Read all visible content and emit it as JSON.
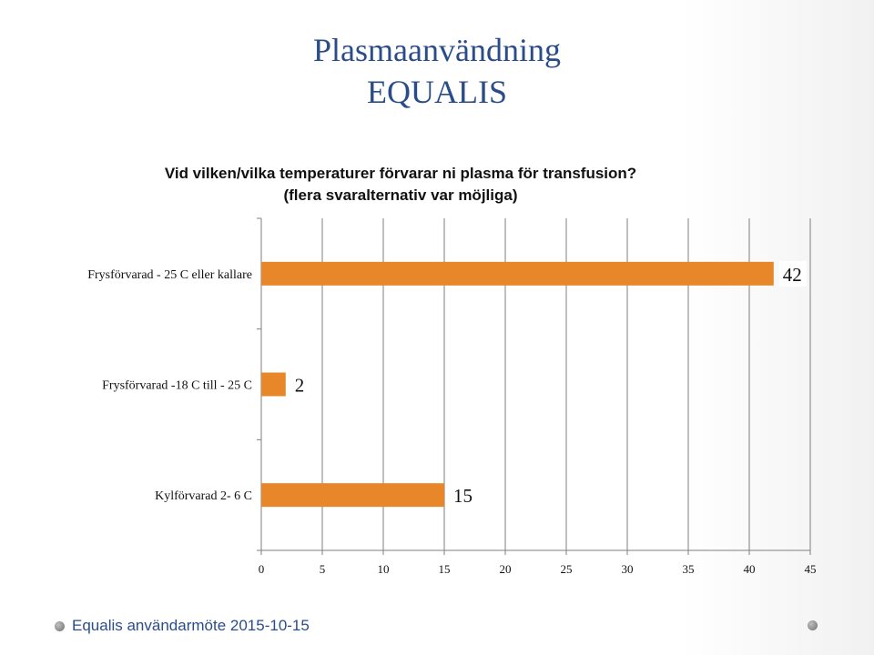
{
  "slide": {
    "title_line1": "Plasmaanvändning",
    "title_line2": "EQUALIS",
    "footer_text": "Equalis användarmöte 2015-10-15"
  },
  "chart_data": {
    "type": "bar",
    "orientation": "horizontal",
    "title": "Vid vilken/vilka temperaturer förvarar ni plasma för transfusion?",
    "subtitle": "(flera svaralternativ var möjliga)",
    "categories": [
      "Frysförvarad - 25 C eller kallare",
      "Frysförvarad -18 C till - 25 C",
      "Kylförvarad 2- 6 C"
    ],
    "values": [
      42,
      2,
      15
    ],
    "data_labels": [
      "42",
      "2",
      "15"
    ],
    "xlim": [
      0,
      45
    ],
    "xticks": [
      0,
      5,
      10,
      15,
      20,
      25,
      30,
      35,
      40,
      45
    ],
    "xtick_labels": [
      "0",
      "5",
      "10",
      "15",
      "20",
      "25",
      "30",
      "35",
      "40",
      "45"
    ],
    "grid": true,
    "bar_color": "#e8872a",
    "grid_color": "#7f7f7f"
  }
}
